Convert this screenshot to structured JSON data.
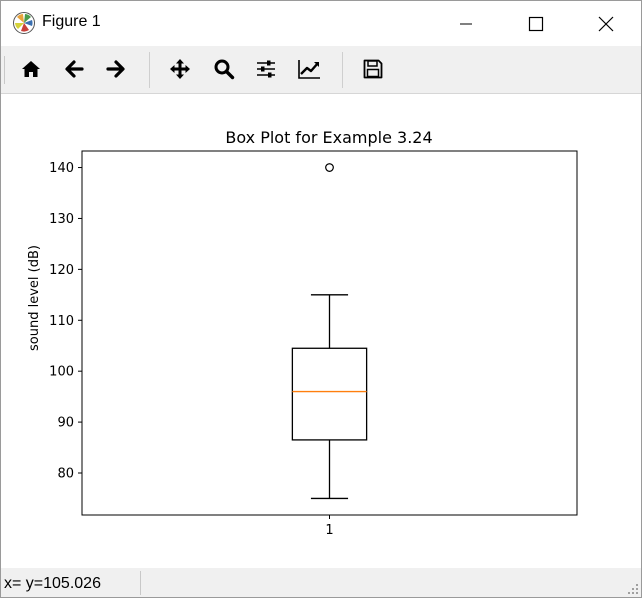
{
  "window": {
    "title": "Figure 1",
    "controls": [
      "minimize-icon",
      "maximize-icon",
      "close-icon"
    ]
  },
  "toolbar": {
    "tools": [
      {
        "name": "home",
        "icon": "home-icon"
      },
      {
        "name": "back",
        "icon": "arrow-left-icon"
      },
      {
        "name": "forward",
        "icon": "arrow-right-icon"
      },
      {
        "name": "pan",
        "icon": "move-icon"
      },
      {
        "name": "zoom",
        "icon": "magnifier-icon"
      },
      {
        "name": "subplots",
        "icon": "sliders-icon"
      },
      {
        "name": "customize",
        "icon": "line-chart-icon"
      },
      {
        "name": "save",
        "icon": "floppy-disk-icon"
      }
    ]
  },
  "status": {
    "text": "x= y=105.026"
  },
  "chart_data": {
    "type": "box",
    "title": "Box Plot for Example 3.24",
    "xlabel": "",
    "ylabel": "sound level (dB)",
    "categories": [
      "1"
    ],
    "yticks": [
      80,
      90,
      100,
      110,
      120,
      130,
      140
    ],
    "ylim": [
      71.75,
      143.25
    ],
    "boxes": [
      {
        "category": "1",
        "whisker_low": 75,
        "q1": 86.5,
        "median": 96,
        "q3": 104.5,
        "whisker_high": 115,
        "outliers": [
          140
        ]
      }
    ],
    "grid": false,
    "colors": {
      "box": "#000000",
      "median": "#ff7f0e"
    }
  }
}
